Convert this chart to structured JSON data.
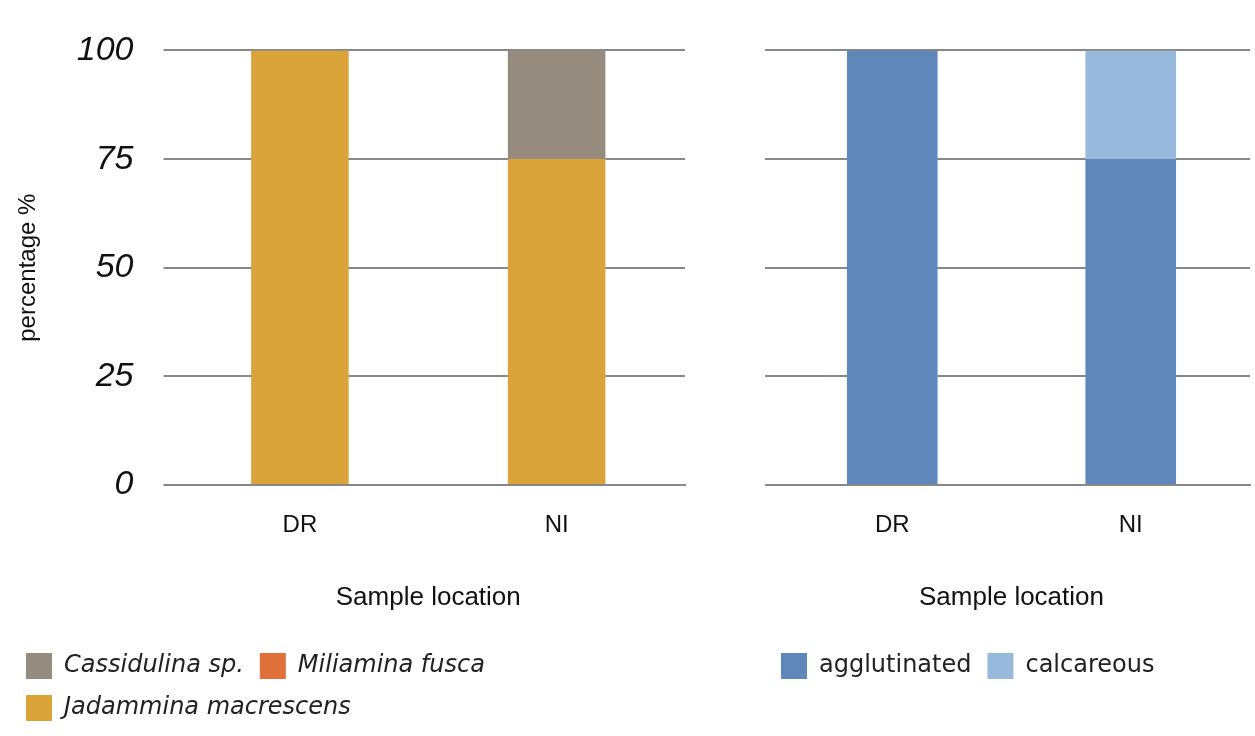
{
  "chart_data": [
    {
      "type": "bar",
      "stacked": true,
      "xlabel": "Sample location",
      "ylabel": "percentage %",
      "categories": [
        "DR",
        "NI"
      ],
      "ylim": [
        0,
        100
      ],
      "yticks": [
        0,
        25,
        50,
        75,
        100
      ],
      "grid": "y",
      "legend": "bottom",
      "series": [
        {
          "name": "Jadammina macrescens",
          "color": "#dba43a",
          "values": [
            100,
            75
          ]
        },
        {
          "name": "Miliamina fusca",
          "color": "#e0703a",
          "values": [
            0,
            0
          ]
        },
        {
          "name": "Cassidulina sp.",
          "color": "#968b7f",
          "values": [
            0,
            25
          ]
        }
      ]
    },
    {
      "type": "bar",
      "stacked": true,
      "xlabel": "Sample location",
      "categories": [
        "DR",
        "NI"
      ],
      "ylim": [
        0,
        100
      ],
      "yticks": [
        0,
        25,
        50,
        75,
        100
      ],
      "grid": "y",
      "legend": "bottom",
      "tick_labels": "x",
      "series": [
        {
          "name": "agglutinated",
          "color": "#5f87b9",
          "values": [
            100,
            75
          ]
        },
        {
          "name": "calcareous",
          "color": "#96b9dc",
          "values": [
            0,
            25
          ]
        }
      ]
    }
  ]
}
